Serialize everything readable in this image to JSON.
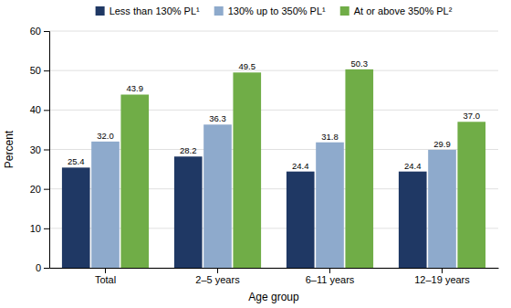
{
  "chart_data": {
    "type": "bar",
    "categories": [
      "Total",
      "2–5 years",
      "6–11 years",
      "12–19 years"
    ],
    "series": [
      {
        "name": "Less than 130% PL¹",
        "color": "#1f3864",
        "values": [
          25.4,
          28.2,
          24.4,
          24.4
        ],
        "value_labels": [
          "25.4",
          "28.2",
          "24.4",
          "24.4"
        ]
      },
      {
        "name": "130% up to 350% PL¹",
        "color": "#8eaacc",
        "values": [
          32.0,
          36.3,
          31.8,
          29.9
        ],
        "value_labels": [
          "32.0",
          "36.3",
          "31.8",
          "29.9"
        ]
      },
      {
        "name": "At or above 350% PL²",
        "color": "#70ad47",
        "values": [
          43.9,
          49.5,
          50.3,
          37.0
        ],
        "value_labels": [
          "43.9",
          "49.5",
          "50.3",
          "37.0"
        ]
      }
    ],
    "xlabel": "Age group",
    "ylabel": "Percent",
    "ylim": [
      0,
      60
    ],
    "yticks": [
      0,
      10,
      20,
      30,
      40,
      50,
      60
    ],
    "grid": true,
    "data_labels": true,
    "legend": "top"
  }
}
